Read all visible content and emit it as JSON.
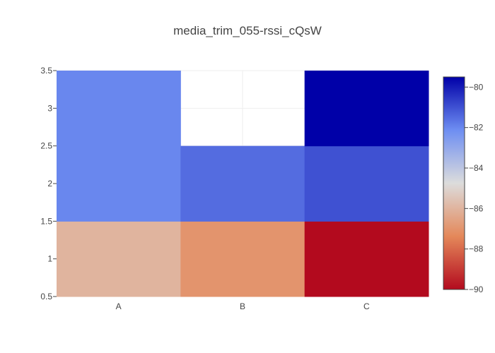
{
  "chart_data": {
    "type": "heatmap",
    "title": "media_trim_055-rssi_cQsW",
    "xlabel": "",
    "ylabel": "",
    "x_categories": [
      "A",
      "B",
      "C"
    ],
    "y_values": [
      1,
      2,
      3
    ],
    "z": [
      [
        -86,
        -87,
        -90
      ],
      [
        -82,
        -81.5,
        -81
      ],
      [
        -82,
        null,
        -79.5
      ]
    ],
    "ylim": [
      0.5,
      3.5
    ],
    "y_ticks": [
      "0.5",
      "1",
      "1.5",
      "2",
      "2.5",
      "3",
      "3.5"
    ],
    "colorbar": {
      "min": -90,
      "max": -79.5,
      "ticks": [
        "−80",
        "−82",
        "−84",
        "−86",
        "−88",
        "−90"
      ],
      "tick_values": [
        -80,
        -82,
        -84,
        -86,
        -88,
        -90
      ],
      "colorscale": [
        [
          0,
          "#b30a1e"
        ],
        [
          0.25,
          "#e4885a"
        ],
        [
          0.5,
          "#dcdcdc"
        ],
        [
          0.75,
          "#6e8ef2"
        ],
        [
          1,
          "#0000a8"
        ]
      ]
    },
    "grid": true,
    "legend": "colorbar right"
  }
}
